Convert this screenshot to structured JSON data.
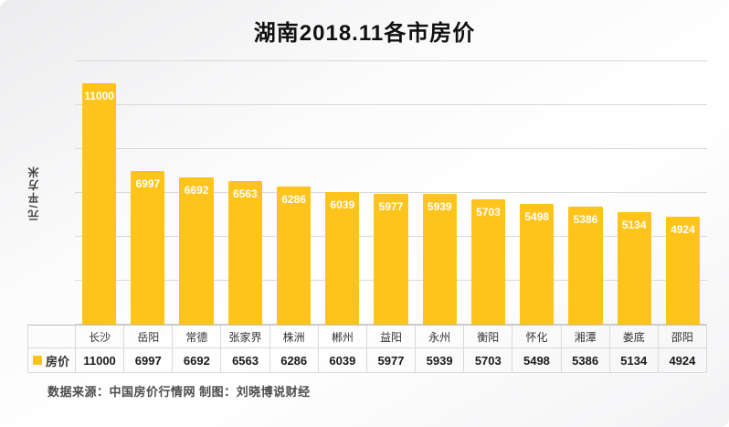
{
  "title": "湖南2018.11各市房价",
  "ylabel": "元/平方米",
  "legend_label": "房价",
  "source": "数据来源：中国房价行情网  制图：刘晓博说财经",
  "colors": {
    "bar": "#FFC41C",
    "gridline": "#d9d9d9",
    "value_label": "#ffffff"
  },
  "chart_data": {
    "type": "bar",
    "title": "湖南2018.11各市房价",
    "ylabel": "元/平方米",
    "series_name": "房价",
    "categories": [
      "长沙",
      "岳阳",
      "常德",
      "张家界",
      "株洲",
      "郴州",
      "益阳",
      "永州",
      "衡阳",
      "怀化",
      "湘潭",
      "娄底",
      "邵阳"
    ],
    "values": [
      11000,
      6997,
      6692,
      6563,
      6286,
      6039,
      5977,
      5939,
      5703,
      5498,
      5386,
      5134,
      4924
    ],
    "ylim": [
      0,
      12000
    ],
    "grid": true,
    "gridline_step": 2000,
    "legend_position": "bottom-left-table",
    "data_labels": "inside-top, white bold"
  }
}
